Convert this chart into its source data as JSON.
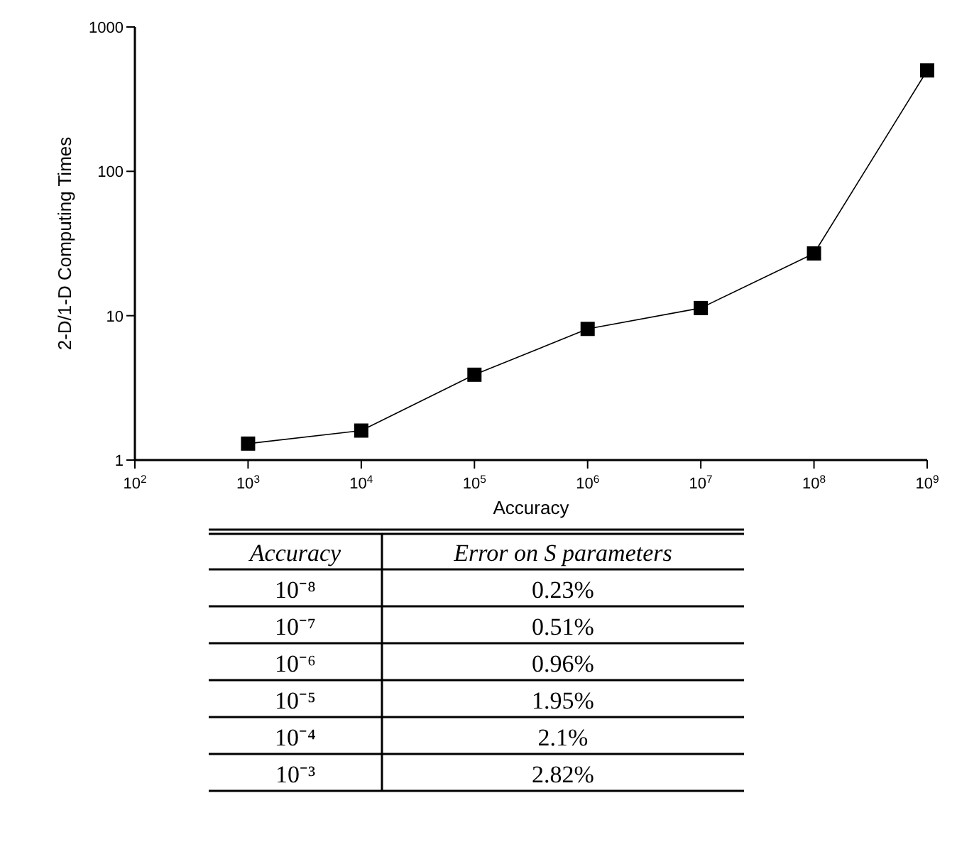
{
  "chart_data": [
    {
      "type": "line",
      "xlabel": "Accuracy",
      "ylabel": "2-D/1-D Computing Times",
      "log": "xy",
      "marker": "square",
      "line_style": "solid",
      "x": [
        1000,
        10000,
        100000,
        1000000,
        10000000,
        100000000,
        1000000000
      ],
      "series": [
        {
          "color": "#000000",
          "values": [
            1.3,
            1.6,
            3.9,
            8.1,
            11.3,
            27,
            500
          ]
        }
      ],
      "xlim": [
        100,
        1000000000
      ],
      "ylim": [
        1,
        1000
      ],
      "xticks": [
        {
          "value": 100,
          "label": "10$^{2}$"
        },
        {
          "value": 1000,
          "label": "10$^{3}$"
        },
        {
          "value": 10000,
          "label": "10$^{4}$"
        },
        {
          "value": 100000,
          "label": "10$^{5}$"
        },
        {
          "value": 1000000,
          "label": "10$^{6}$"
        },
        {
          "value": 10000000,
          "label": "10$^{7}$"
        },
        {
          "value": 100000000,
          "label": "10$^{8}$"
        },
        {
          "value": 1000000000,
          "label": "10$^{9}$"
        }
      ],
      "yticks": [
        1,
        10,
        100,
        1000
      ]
    },
    {
      "type": "other",
      "annotations": [
        "Accuracy",
        "Error on S parameters",
        "10⁻⁸",
        "0.23%",
        "10⁻⁷",
        "0.51%",
        "10⁻⁶",
        "0.96%",
        "10⁻⁵",
        "1.95%",
        "10⁻⁴",
        "2.1%",
        "10⁻³",
        "2.82%"
      ]
    }
  ]
}
